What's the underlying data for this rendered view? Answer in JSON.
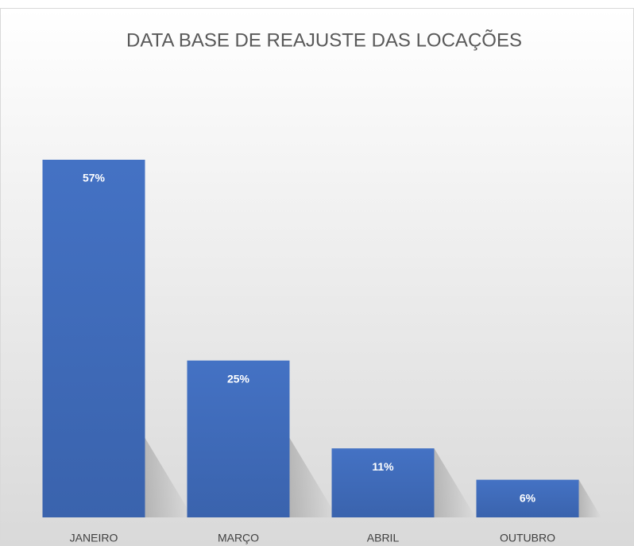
{
  "chart_data": {
    "type": "bar",
    "title": "DATA BASE DE REAJUSTE DAS LOCAÇÕES",
    "categories": [
      "JANEIRO",
      "MARÇO",
      "ABRIL",
      "OUTUBRO"
    ],
    "values": [
      57,
      25,
      11,
      6
    ],
    "value_labels": [
      "57%",
      "25%",
      "11%",
      "6%"
    ],
    "color": "#4472c4"
  }
}
